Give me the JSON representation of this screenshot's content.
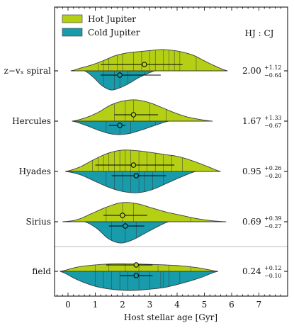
{
  "chart_data": {
    "type": "violin",
    "xlabel": "Host stellar age [Gyr]",
    "xlim": [
      -0.45,
      8.0
    ],
    "x_ticks": [
      "0",
      "1",
      "2",
      "3",
      "4",
      "5",
      "6",
      "7"
    ],
    "ratio_header": "HJ : CJ",
    "legend_position": "top-left",
    "series": [
      {
        "name": "Hot Jupiter",
        "color": "#b5d014"
      },
      {
        "name": "Cold Jupiter",
        "color": "#189bab"
      }
    ],
    "groups": [
      {
        "label": "z−vₓ spiral",
        "ratio": {
          "value": "2.00",
          "plus": "+1.12",
          "minus": "−0.64"
        },
        "hot": {
          "median": 2.8,
          "err": [
            1.2,
            4.2
          ],
          "range": [
            0.1,
            5.85
          ],
          "width": [
            0.15,
            0.3,
            0.5,
            0.72,
            0.84,
            0.9,
            0.95,
            1.0,
            0.97,
            0.88,
            0.72,
            0.45,
            0.2
          ],
          "ages": [
            1.1,
            1.3,
            1.5,
            1.8,
            2.0,
            2.4,
            2.7,
            3.0,
            3.2,
            3.5,
            3.7,
            3.9,
            4.1,
            4.7
          ]
        },
        "cold": {
          "median": 1.9,
          "err": [
            1.2,
            3.4
          ],
          "range": [
            0.6,
            3.2
          ],
          "width": [
            0.3,
            0.7,
            0.9,
            0.8,
            0.6,
            0.35,
            0.15
          ],
          "ages": [
            1.3,
            1.7,
            1.9,
            2.2,
            2.8
          ]
        }
      },
      {
        "label": "Hercules",
        "ratio": {
          "value": "1.67",
          "plus": "+1.33",
          "minus": "−0.67"
        },
        "hot": {
          "median": 2.4,
          "err": [
            1.7,
            3.3
          ],
          "range": [
            0.15,
            5.3
          ],
          "width": [
            0.15,
            0.4,
            0.75,
            0.95,
            1.0,
            0.88,
            0.65,
            0.4,
            0.2,
            0.08
          ],
          "ages": [
            1.7,
            2.1,
            2.4,
            3.0,
            3.6
          ]
        },
        "cold": {
          "median": 1.9,
          "err": [
            1.5,
            2.1
          ],
          "range": [
            0.15,
            3.7
          ],
          "width": [
            0.2,
            0.45,
            0.62,
            0.6,
            0.42,
            0.2
          ],
          "ages": [
            1.4,
            1.9,
            2.3,
            3.2
          ]
        }
      },
      {
        "label": "Hyades",
        "ratio": {
          "value": "0.95",
          "plus": "+0.26",
          "minus": "−0.20"
        },
        "hot": {
          "median": 2.4,
          "err": [
            1.0,
            3.9
          ],
          "range": [
            -0.1,
            5.6
          ],
          "width": [
            0.2,
            0.55,
            0.85,
            1.0,
            0.98,
            0.9,
            0.8,
            0.7,
            0.5,
            0.25
          ],
          "ages": [
            0.9,
            1.1,
            1.3,
            1.5,
            1.7,
            1.9,
            2.1,
            2.3,
            2.6,
            2.9,
            3.2,
            3.5,
            3.8,
            4.2
          ]
        },
        "cold": {
          "median": 2.5,
          "err": [
            1.6,
            3.6
          ],
          "range": [
            -0.1,
            4.7
          ],
          "width": [
            0.15,
            0.45,
            0.75,
            0.95,
            1.0,
            0.85,
            0.55,
            0.25
          ],
          "ages": [
            1.4,
            1.7,
            2.0,
            2.3,
            2.6,
            2.8,
            3.1,
            3.5
          ]
        }
      },
      {
        "label": "Sirius",
        "ratio": {
          "value": "0.69",
          "plus": "+0.39",
          "minus": "−0.27"
        },
        "hot": {
          "median": 2.0,
          "err": [
            1.3,
            2.9
          ],
          "range": [
            -0.2,
            5.8
          ],
          "width": [
            0.1,
            0.4,
            0.7,
            0.9,
            0.85,
            0.65,
            0.45,
            0.3,
            0.15,
            0.05
          ],
          "ages": [
            1.4,
            2.0,
            2.4,
            4.5
          ]
        },
        "cold": {
          "median": 2.1,
          "err": [
            1.5,
            2.8
          ],
          "range": [
            0.6,
            3.7
          ],
          "width": [
            0.3,
            0.8,
            1.0,
            0.85,
            0.55,
            0.25
          ],
          "ages": [
            1.6,
            2.1,
            2.5
          ]
        }
      },
      {
        "label": "field",
        "ratio": {
          "value": "0.24",
          "plus": "+0.12",
          "minus": "−0.10"
        },
        "hot": {
          "median": 2.5,
          "err": [
            1.4,
            3.1
          ],
          "range": [
            -0.3,
            5.5
          ],
          "width": [
            0.2,
            0.3,
            0.35,
            0.35,
            0.33,
            0.3,
            0.25,
            0.15
          ],
          "ages": [
            1.0,
            1.5,
            2.1,
            2.6,
            3.3,
            3.7,
            4.5
          ]
        },
        "cold": {
          "median": 2.5,
          "err": [
            1.9,
            3.1
          ],
          "range": [
            -0.3,
            5.5
          ],
          "width": [
            0.4,
            0.7,
            0.85,
            0.9,
            0.85,
            0.75,
            0.55,
            0.3
          ],
          "ages": [
            1.0,
            1.3,
            1.6,
            1.9,
            2.2,
            2.6,
            3.0,
            3.4,
            3.5,
            3.7,
            4.1
          ]
        }
      }
    ]
  }
}
